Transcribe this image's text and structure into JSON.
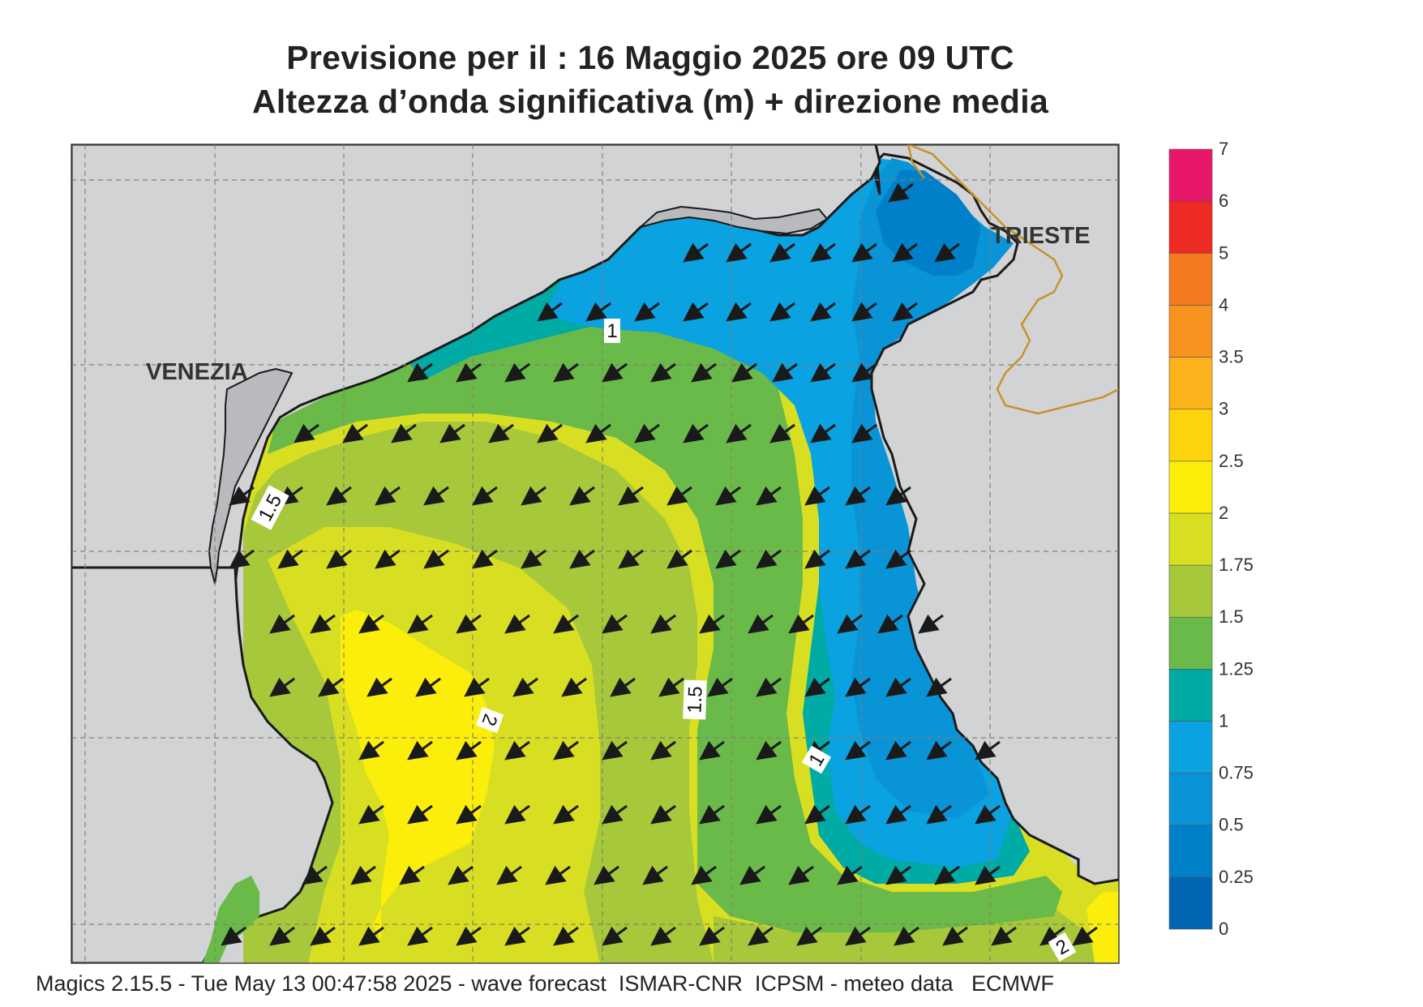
{
  "title": {
    "line1": "Previsione per il  :  16   Maggio  2025   ore 09 UTC",
    "line2": "Altezza d’onda significativa (m) + direzione media"
  },
  "footer": "Magics 2.15.5 - Tue May 13 00:47:58 2025 - wave forecast  ISMAR-CNR  ICPSM - meteo data   ECMWF",
  "places": {
    "venezia": "VENEZIA",
    "trieste": "TRIESTE"
  },
  "colorbar": {
    "levels": [
      "0",
      "0.25",
      "0.5",
      "0.75",
      "1",
      "1.25",
      "1.5",
      "1.75",
      "2",
      "2.5",
      "3",
      "3.5",
      "4",
      "5",
      "6",
      "7"
    ],
    "colors": [
      "#0066b4",
      "#0080c8",
      "#0a94d8",
      "#0aa2e0",
      "#00aaa5",
      "#6aba4a",
      "#a6c83a",
      "#d8df22",
      "#fbee0a",
      "#fdd40b",
      "#fbb21b",
      "#f7931e",
      "#f47920",
      "#ee2a24",
      "#e8176a"
    ]
  },
  "contour_labels": [
    "1",
    "1.5",
    "1.5",
    "2",
    "1",
    "2"
  ],
  "wave_direction": "north-east to south-west (toward WSW)",
  "land_color": "#d1d3d4",
  "border_color": "#c8922a"
}
